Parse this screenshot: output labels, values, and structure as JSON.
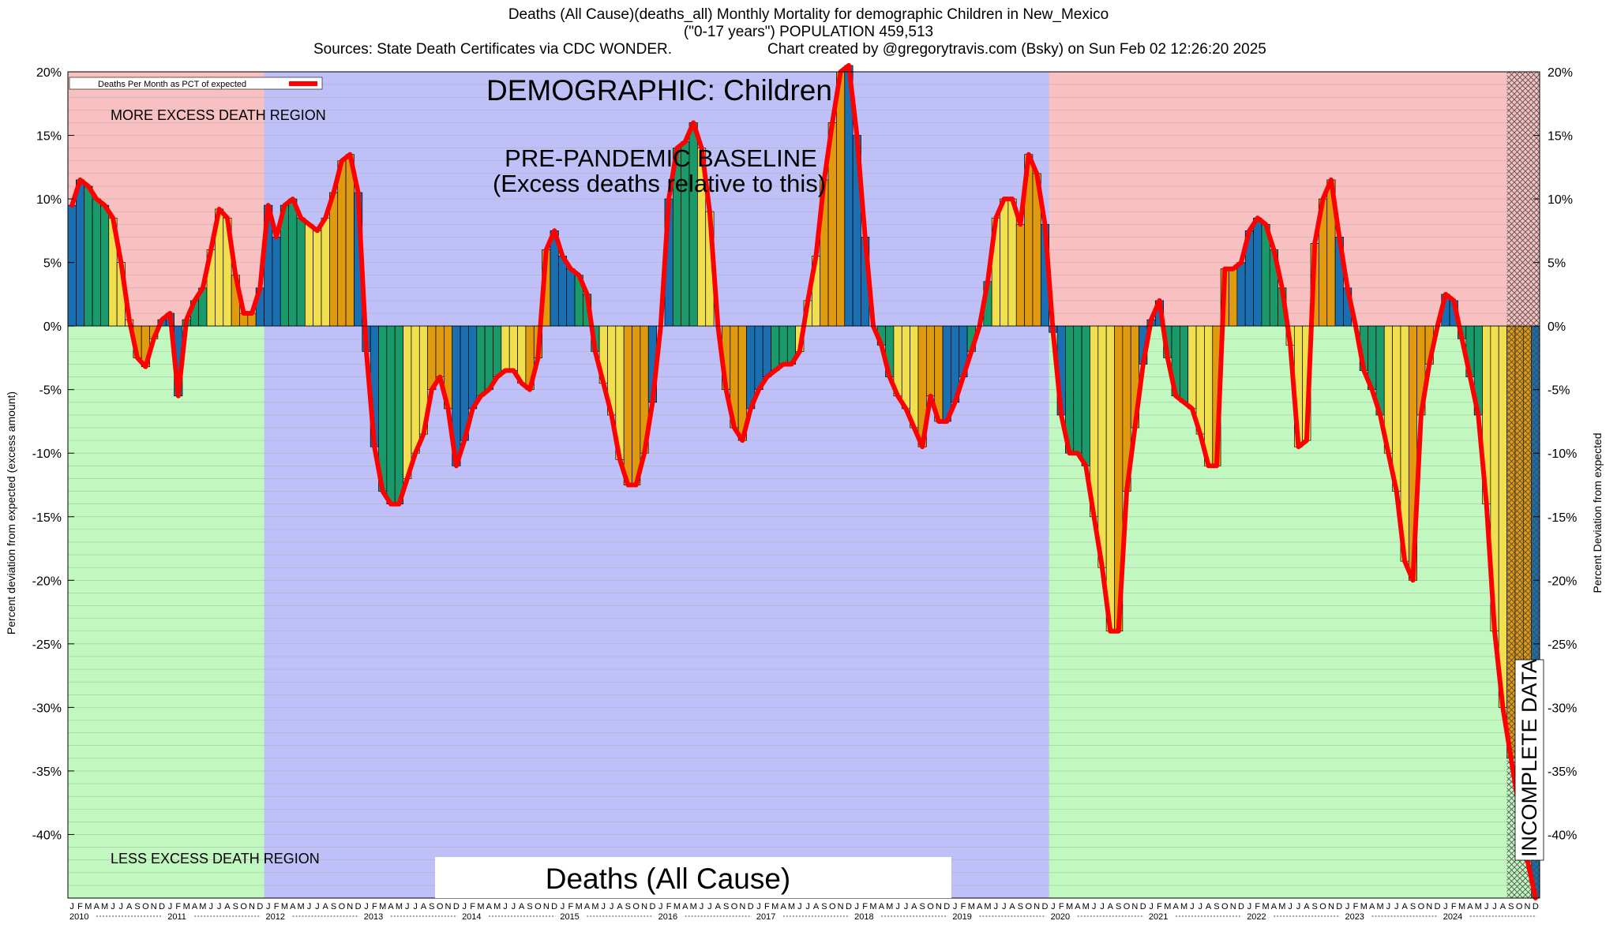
{
  "title": {
    "line1": "Deaths (All Cause)(deaths_all) Monthly Mortality for demographic Children in New_Mexico",
    "line2": "(\"0-17 years\") POPULATION 459,513",
    "line3_left": "Sources: State Death Certificates via CDC WONDER.",
    "line3_right": "Chart created by @gregorytravis.com (Bsky) on Sun Feb 02 12:26:20 2025"
  },
  "labels": {
    "legend": "Deaths Per Month as PCT of expected",
    "demographic": "DEMOGRAPHIC: Children",
    "baseline_line1": "PRE-PANDEMIC BASELINE",
    "baseline_line2": "(Excess deaths relative to this)",
    "more_region": "MORE EXCESS DEATH REGION",
    "less_region": "LESS EXCESS DEATH REGION",
    "bottom_box": "Deaths (All Cause)",
    "incomplete": "INCOMPLETE DATA",
    "ylabel_left": "Percent deviation from expected (excess amount)",
    "ylabel_right": "Percent Deviation from expected"
  },
  "colors": {
    "excess_region": "#f8c0c0",
    "less_region": "#c0f8c0",
    "baseline_region": "#c0c0f8",
    "winter": "#1a6fb0",
    "spring": "#1a9a6a",
    "summer": "#f0e050",
    "fall": "#e09a10",
    "line": "#ff0000"
  },
  "chart_data": {
    "type": "bar",
    "ylim": [
      -45,
      20
    ],
    "yticks": [
      20,
      15,
      10,
      5,
      0,
      -5,
      -10,
      -15,
      -20,
      -25,
      -30,
      -35,
      -40
    ],
    "ytick_labels": [
      "20%",
      "15%",
      "10%",
      "5%",
      "0%",
      "-5%",
      "-10%",
      "-15%",
      "-20%",
      "-25%",
      "-30%",
      "-35%",
      "-40%"
    ],
    "month_letters": [
      "J",
      "F",
      "M",
      "A",
      "M",
      "J",
      "J",
      "A",
      "S",
      "O",
      "N",
      "D"
    ],
    "years": [
      "2010",
      "2011",
      "2012",
      "2013",
      "2014",
      "2015",
      "2016",
      "2017",
      "2018",
      "2019",
      "2020",
      "2021",
      "2022",
      "2023",
      "2024"
    ],
    "baseline_years": [
      "2012",
      "2019"
    ],
    "incomplete_months": [
      "2024-09",
      "2024-12"
    ],
    "series": [
      {
        "name": "Deaths Per Month as PCT of expected",
        "start": "2010-01",
        "values": [
          9.5,
          11.5,
          11,
          10,
          9.5,
          8.5,
          5,
          0.5,
          -2.5,
          -3.2,
          -1,
          0.5,
          1,
          -5.5,
          0.5,
          2,
          3,
          6,
          9.2,
          8.5,
          4,
          1,
          1,
          3,
          9.5,
          7,
          9.5,
          10,
          8.5,
          8,
          7.5,
          8.5,
          10.5,
          13,
          13.5,
          10.5,
          -2,
          -9.5,
          -13,
          -14,
          -14,
          -12,
          -10,
          -8.5,
          -5,
          -4,
          -6.5,
          -11,
          -9,
          -6.5,
          -5.5,
          -5,
          -4,
          -3.5,
          -3.5,
          -4.5,
          -5,
          -2.5,
          6,
          7.5,
          5.5,
          4.5,
          4,
          2.5,
          -2,
          -4.5,
          -7,
          -10.5,
          -12.5,
          -12.5,
          -10,
          -6,
          0,
          10,
          14,
          14.5,
          16,
          14,
          9,
          0,
          -5,
          -8,
          -9,
          -6.5,
          -5,
          -4,
          -3.5,
          -3,
          -3,
          -2,
          2,
          5.5,
          11.5,
          16,
          20,
          20.5,
          15,
          7,
          0,
          -1.5,
          -4,
          -5.5,
          -6.5,
          -8,
          -9.5,
          -5.5,
          -7.5,
          -7.5,
          -6,
          -4,
          -2,
          0,
          3.5,
          8.5,
          10,
          10,
          8,
          13.5,
          12,
          8,
          -0.5,
          -7,
          -10,
          -10,
          -11,
          -15,
          -19,
          -24,
          -24,
          -13,
          -8,
          -3,
          0.5,
          2,
          -2.5,
          -5.5,
          -6,
          -6.5,
          -8.5,
          -11,
          -11,
          4.5,
          4.5,
          5,
          7.5,
          8.5,
          8,
          6,
          3,
          -1.5,
          -9.5,
          -9,
          6.5,
          10,
          11.5,
          7,
          3,
          0,
          -3.5,
          -5,
          -7,
          -10,
          -13,
          -18.5,
          -20,
          -7,
          -3,
          0,
          2.5,
          2,
          -1,
          -4,
          -7,
          -14,
          -24,
          -30,
          -34,
          -38,
          -42,
          -45
        ]
      }
    ]
  }
}
